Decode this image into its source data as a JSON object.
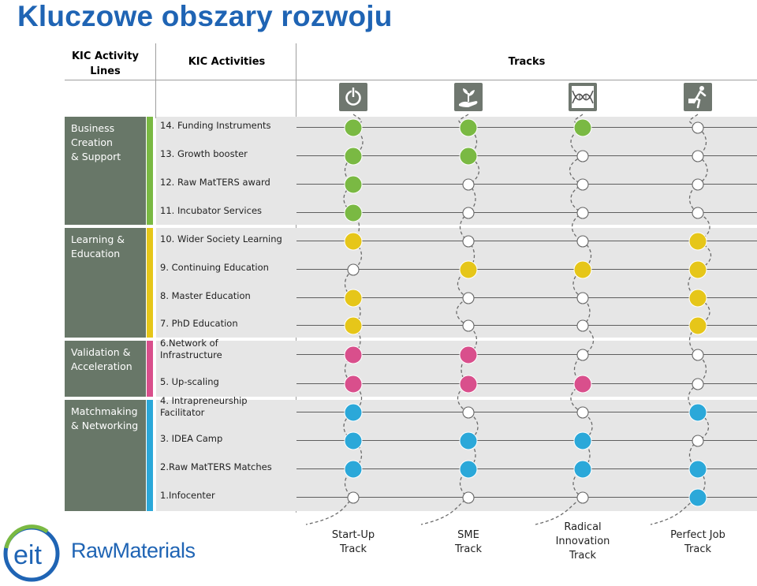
{
  "title": "Kluczowe obszary rozwoju",
  "headers": {
    "lines_line1": "KIC Activity",
    "lines_line2": "Lines",
    "activities": "KIC Activities",
    "tracks": "Tracks"
  },
  "categories": [
    {
      "lines": [
        "Business",
        "Creation",
        "& Support"
      ],
      "color": "#7ab943"
    },
    {
      "lines": [
        "Learning &",
        "Education"
      ],
      "color": "#e6c619"
    },
    {
      "lines": [
        "Validation &",
        "Acceleration"
      ],
      "color": "#d94f8c"
    },
    {
      "lines": [
        "Matchmaking",
        "& Networking"
      ],
      "color": "#2ba8d9"
    }
  ],
  "activities": [
    {
      "lines": [
        "14. Funding Instruments"
      ],
      "cat": 0
    },
    {
      "lines": [
        "13. Growth booster"
      ],
      "cat": 0
    },
    {
      "lines": [
        "12. Raw MatTERS award"
      ],
      "cat": 0
    },
    {
      "lines": [
        "11. Incubator Services"
      ],
      "cat": 0
    },
    {
      "lines": [
        "10. Wider Society Learning"
      ],
      "cat": 1
    },
    {
      "lines": [
        "9. Continuing Education"
      ],
      "cat": 1
    },
    {
      "lines": [
        "8. Master Education"
      ],
      "cat": 1
    },
    {
      "lines": [
        "7. PhD Education"
      ],
      "cat": 1
    },
    {
      "lines": [
        "6.Network of",
        "Infrastructure"
      ],
      "cat": 2
    },
    {
      "lines": [
        "5. Up-scaling"
      ],
      "cat": 2
    },
    {
      "lines": [
        "4. Intrapreneurship",
        "Facilitator"
      ],
      "cat": 3
    },
    {
      "lines": [
        "3. IDEA Camp"
      ],
      "cat": 3
    },
    {
      "lines": [
        "2.Raw MatTERS Matches"
      ],
      "cat": 3
    },
    {
      "lines": [
        "1.Infocenter"
      ],
      "cat": 3
    }
  ],
  "tracks": [
    {
      "lines": [
        "Start-Up",
        "Track"
      ],
      "icon": "power-icon",
      "filled": [
        1,
        1,
        1,
        1,
        1,
        0,
        1,
        1,
        1,
        1,
        1,
        1,
        1,
        0
      ]
    },
    {
      "lines": [
        "SME",
        "Track"
      ],
      "icon": "plant-hand-icon",
      "filled": [
        1,
        1,
        0,
        0,
        0,
        1,
        0,
        0,
        1,
        1,
        0,
        1,
        1,
        0
      ]
    },
    {
      "lines": [
        "Radical",
        "Innovation",
        "Track"
      ],
      "icon": "dna-helix-icon",
      "filled": [
        1,
        0,
        0,
        0,
        0,
        1,
        0,
        0,
        0,
        1,
        0,
        1,
        1,
        0
      ]
    },
    {
      "lines": [
        "Perfect Job",
        "Track"
      ],
      "icon": "running-businessman-icon",
      "filled": [
        0,
        0,
        0,
        0,
        1,
        1,
        1,
        1,
        0,
        0,
        1,
        0,
        1,
        1
      ]
    }
  ],
  "colors": {
    "title": "#1f64b4",
    "category_box": "#687768",
    "band": "#e6e6e6",
    "empty_dot": "#ffffff"
  },
  "logo": {
    "mark": "eit",
    "name": "RawMaterials"
  }
}
